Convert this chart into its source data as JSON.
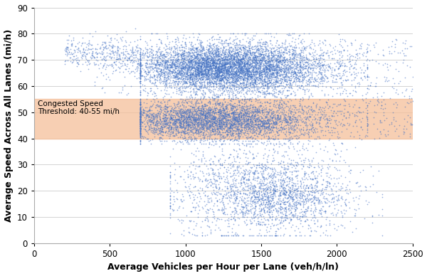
{
  "title": "",
  "xlabel": "Average Vehicles per Hour per Lane (veh/h/ln)",
  "ylabel": "Average Speed Across All Lanes (mi/h)",
  "xlim": [
    0,
    2500
  ],
  "ylim": [
    0,
    90
  ],
  "xticks": [
    0,
    500,
    1000,
    1500,
    2000,
    2500
  ],
  "yticks": [
    0,
    10,
    20,
    30,
    40,
    50,
    60,
    70,
    80,
    90
  ],
  "congested_ymin": 40,
  "congested_ymax": 55,
  "congested_color": "#f5c09a",
  "congested_alpha": 0.75,
  "congested_label_line1": "Congested Speed",
  "congested_label_line2": "Threshold: 40-55 mi/h",
  "dot_color": "#4472C4",
  "dot_size": 1.5,
  "dot_alpha": 0.55,
  "background_color": "#ffffff",
  "seed": 42
}
